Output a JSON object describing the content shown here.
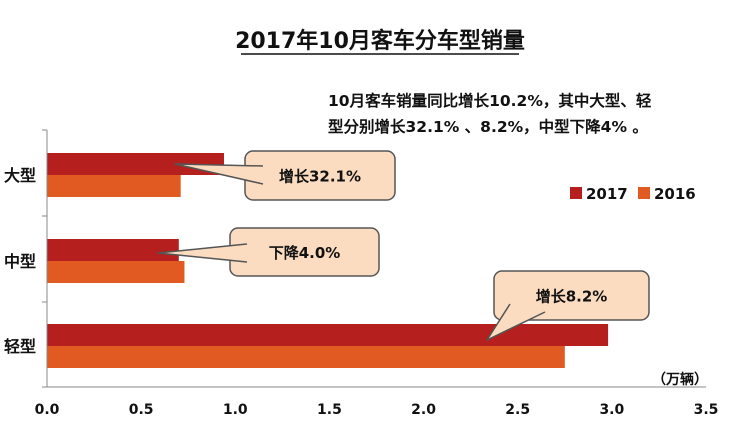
{
  "chart_data": {
    "type": "bar",
    "orientation": "horizontal",
    "title": "2017年10月客车分车型销量",
    "annotation": [
      "10月客车销量同比增长10.2%，其中大型、轻",
      "型分别增长32.1% 、8.2%，中型下降4% 。"
    ],
    "categories": [
      "大型",
      "中型",
      "轻型"
    ],
    "series": [
      {
        "name": "2017",
        "color": "#b5201f",
        "values": [
          0.94,
          0.7,
          2.98
        ]
      },
      {
        "name": "2016",
        "color": "#e05a22",
        "values": [
          0.71,
          0.73,
          2.75
        ]
      }
    ],
    "xlim": [
      0,
      3.5
    ],
    "xticks": [
      "0.0",
      "0.5",
      "1.0",
      "1.5",
      "2.0",
      "2.5",
      "3.0",
      "3.5"
    ],
    "xunit": "（万辆）",
    "legend_position": "right",
    "grid": false,
    "callouts": [
      {
        "category": "大型",
        "text": "增长32.1%"
      },
      {
        "category": "中型",
        "text": "下降4.0%"
      },
      {
        "category": "轻型",
        "text": "增长8.2%"
      }
    ]
  }
}
